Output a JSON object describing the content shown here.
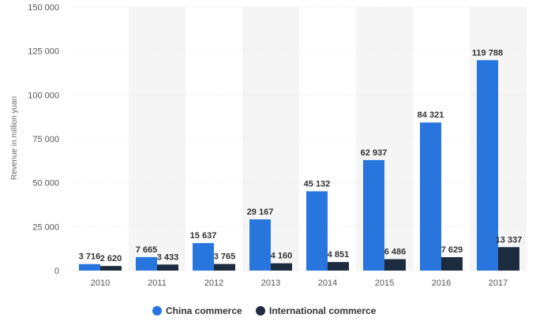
{
  "chart_data": {
    "type": "bar",
    "categories": [
      "2010",
      "2011",
      "2012",
      "2013",
      "2014",
      "2015",
      "2016",
      "2017"
    ],
    "series": [
      {
        "name": "China commerce",
        "color": "#2876dd",
        "values": [
          3716,
          7665,
          15637,
          29167,
          45132,
          62937,
          84321,
          119788
        ],
        "labels": [
          "3 716",
          "7 665",
          "15 637",
          "29 167",
          "45 132",
          "62 937",
          "84 321",
          "119 788"
        ]
      },
      {
        "name": "International commerce",
        "color": "#1c2b3d",
        "values": [
          2620,
          3433,
          3765,
          4160,
          4851,
          6486,
          7629,
          13337
        ],
        "labels": [
          "2 620",
          "3 433",
          "3 765",
          "4 160",
          "4 851",
          "6 486",
          "7 629",
          "13 337"
        ]
      }
    ],
    "ylabel": "Revenue in million yuan",
    "ylim": [
      0,
      150000
    ],
    "yticks": [
      0,
      25000,
      50000,
      75000,
      100000,
      125000,
      150000
    ],
    "ytick_labels": [
      "0",
      "25 000",
      "50 000",
      "75 000",
      "100 000",
      "125 000",
      "150 000"
    ],
    "grid": true,
    "legend_position": "bottom-center",
    "band_color": "#f5f5f5",
    "grid_color": "#e6e6e6"
  }
}
